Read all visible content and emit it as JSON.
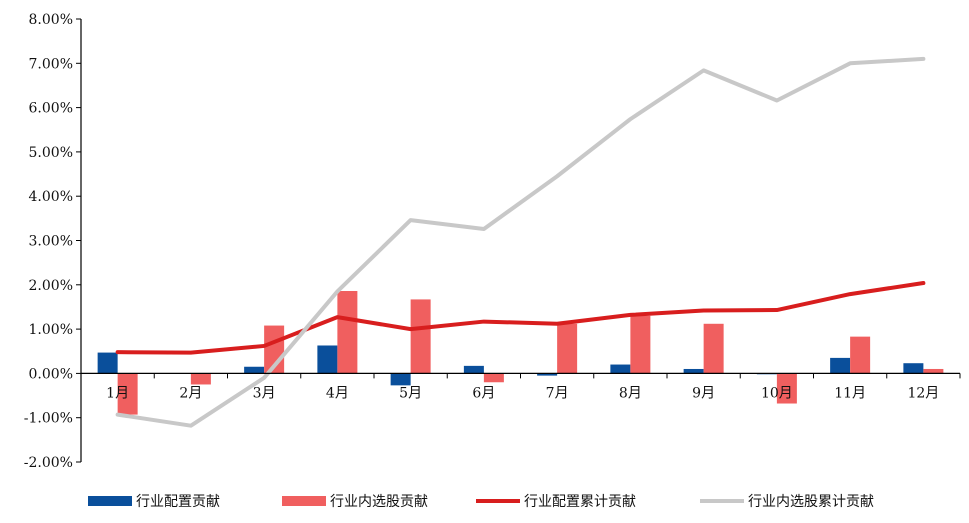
{
  "chart_data": {
    "type": "bar",
    "categories": [
      "1月",
      "2月",
      "3月",
      "4月",
      "5月",
      "6月",
      "7月",
      "8月",
      "9月",
      "10月",
      "11月",
      "12月"
    ],
    "y_ticks": [
      "8.00%",
      "7.00%",
      "6.00%",
      "5.00%",
      "4.00%",
      "3.00%",
      "2.00%",
      "1.00%",
      "0.00%",
      "-1.00%",
      "-2.00%"
    ],
    "ylim": [
      -2.0,
      8.0
    ],
    "y_unit": "%",
    "series": [
      {
        "name": "行业配置贡献",
        "kind": "bar",
        "color": "#0a4f9b",
        "values": [
          0.47,
          0.0,
          0.15,
          0.63,
          -0.27,
          0.17,
          -0.05,
          0.2,
          0.1,
          -0.02,
          0.35,
          0.23
        ]
      },
      {
        "name": "行业内选股贡献",
        "kind": "bar",
        "color": "#f05f5f",
        "values": [
          -0.93,
          -0.25,
          1.08,
          1.86,
          1.67,
          -0.2,
          1.12,
          1.3,
          1.12,
          -0.68,
          0.83,
          0.1
        ]
      },
      {
        "name": "行业配置累计贡献",
        "kind": "line",
        "color": "#d81e1e",
        "values": [
          0.48,
          0.47,
          0.62,
          1.27,
          1.0,
          1.17,
          1.12,
          1.32,
          1.42,
          1.43,
          1.79,
          2.04
        ]
      },
      {
        "name": "行业内选股累计贡献",
        "kind": "line",
        "color": "#c8c8c8",
        "values": [
          -0.93,
          -1.18,
          -0.1,
          1.85,
          3.46,
          3.26,
          4.45,
          5.74,
          6.84,
          6.16,
          7.0,
          7.1
        ]
      }
    ],
    "legend_position": "bottom",
    "grid": false
  }
}
